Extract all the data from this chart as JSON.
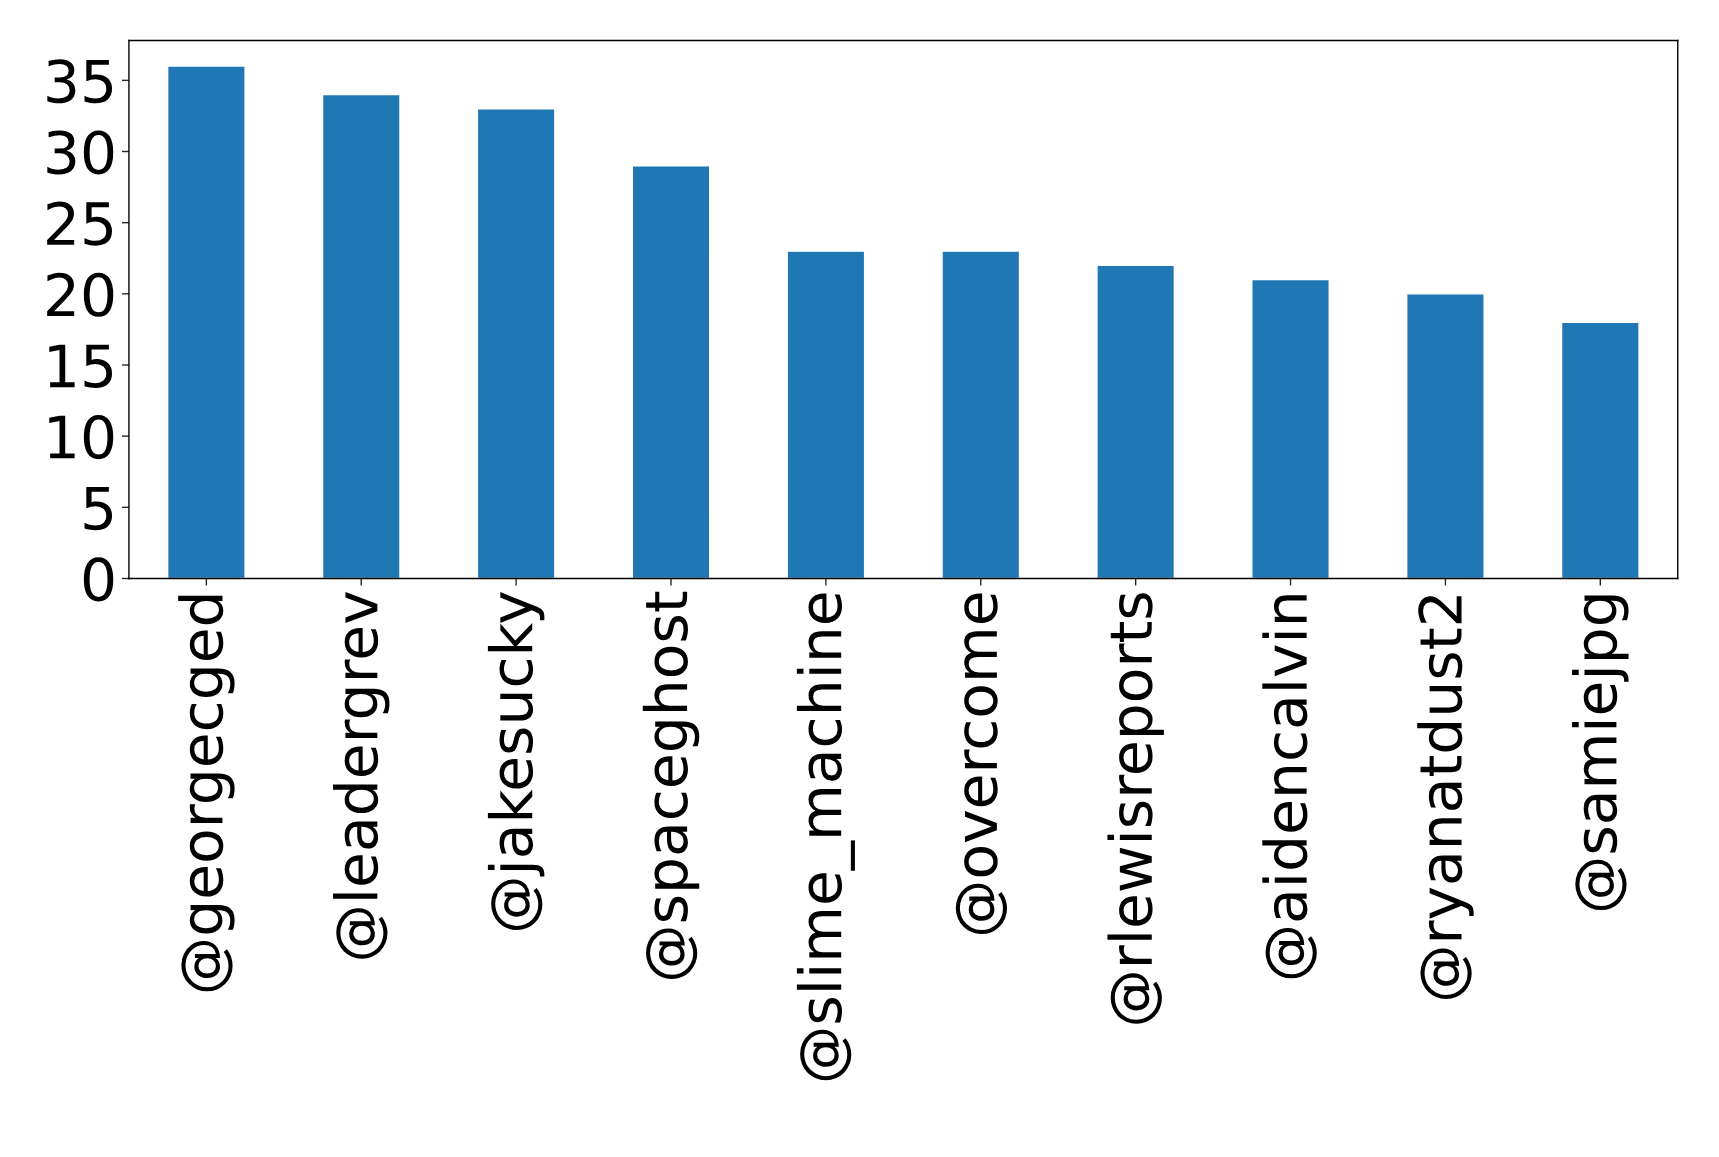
{
  "chart_data": {
    "type": "bar",
    "categories": [
      "@georgecged",
      "@leadergrev",
      "@jakesucky",
      "@spaceghost",
      "@slime_machine",
      "@overcome",
      "@rlewisreports",
      "@aidencalvin",
      "@ryanatdust2",
      "@samiejpg"
    ],
    "values": [
      36,
      34,
      33,
      29,
      23,
      23,
      22,
      21,
      20,
      18
    ],
    "color": "#1f77b4",
    "ylim": [
      0,
      37.8
    ],
    "yticks": [
      0,
      5,
      10,
      15,
      20,
      25,
      30,
      35
    ],
    "grid": false
  }
}
